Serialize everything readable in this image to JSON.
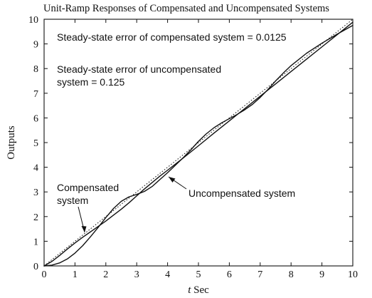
{
  "chart_data": {
    "type": "line",
    "title": "Unit-Ramp Responses of Compensated and Uncompensated Systems",
    "xlabel_italic": "t",
    "xlabel_rest": " Sec",
    "ylabel": "Outputs",
    "xlim": [
      0,
      10
    ],
    "ylim": [
      0,
      10
    ],
    "xticks": [
      0,
      1,
      2,
      3,
      4,
      5,
      6,
      7,
      8,
      9,
      10
    ],
    "yticks": [
      0,
      1,
      2,
      3,
      4,
      5,
      6,
      7,
      8,
      9,
      10
    ],
    "grid": false,
    "series": [
      {
        "x": [
          0,
          0.25,
          0.5,
          0.75,
          1,
          1.25,
          1.5,
          1.75,
          2,
          2.25,
          2.5,
          2.75,
          3,
          3.25,
          3.5,
          3.75,
          4,
          4.5,
          5,
          5.5,
          6,
          6.5,
          7,
          7.5,
          8,
          8.5,
          9,
          9.5,
          10
        ],
        "y": [
          0,
          0.18,
          0.42,
          0.68,
          0.93,
          1.16,
          1.38,
          1.6,
          1.82,
          2.06,
          2.3,
          2.56,
          2.84,
          3.12,
          3.38,
          3.64,
          3.88,
          4.37,
          4.87,
          5.38,
          5.88,
          6.38,
          6.88,
          7.38,
          7.88,
          8.38,
          8.88,
          9.38,
          9.88
        ]
      },
      {
        "x": [
          0,
          0.25,
          0.5,
          0.75,
          1,
          1.25,
          1.5,
          1.75,
          2,
          2.25,
          2.5,
          2.75,
          3,
          3.25,
          3.5,
          3.75,
          4,
          4.25,
          4.5,
          4.75,
          5,
          5.25,
          5.5,
          5.75,
          6,
          6.25,
          6.5,
          6.75,
          7,
          7.25,
          7.5,
          7.75,
          8,
          8.5,
          9,
          9.5,
          10
        ],
        "y": [
          0,
          0.03,
          0.12,
          0.28,
          0.52,
          0.82,
          1.18,
          1.56,
          1.96,
          2.33,
          2.62,
          2.8,
          2.9,
          3.02,
          3.22,
          3.5,
          3.78,
          4.08,
          4.38,
          4.7,
          5.05,
          5.35,
          5.6,
          5.8,
          5.97,
          6.14,
          6.33,
          6.55,
          6.83,
          7.15,
          7.5,
          7.82,
          8.12,
          8.62,
          9.03,
          9.4,
          9.75
        ]
      }
    ],
    "reference_line": {
      "x": [
        0,
        10
      ],
      "y": [
        0,
        10
      ],
      "style": "dotted"
    },
    "annotations": {
      "ss_compensated": "Steady-state error of compensated system = 0.0125",
      "ss_uncompensated_line1": "Steady-state error of uncompensated",
      "ss_uncompensated_line2": "system = 0.125",
      "compensated_line1": "Compensated",
      "compensated_line2": "system",
      "uncompensated": "Uncompensated system"
    }
  }
}
